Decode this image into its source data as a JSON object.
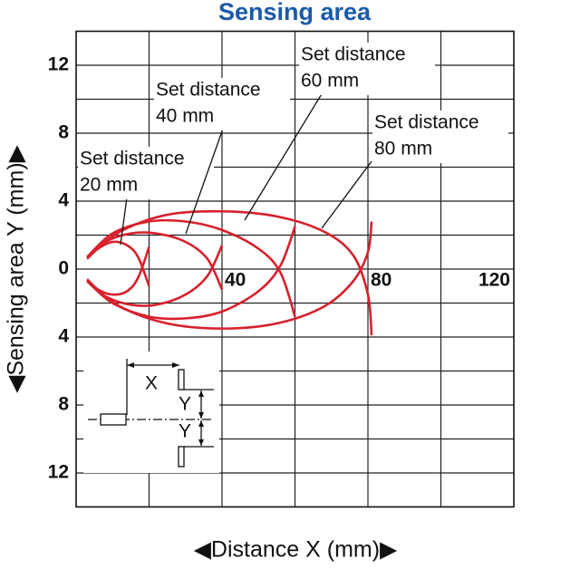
{
  "chart_data": {
    "type": "line",
    "title": "Sensing area",
    "xlabel": "◀Distance X (mm)▶",
    "ylabel": "◀Sensing area Y (mm)▶",
    "xlim": [
      0,
      120
    ],
    "ylim": [
      -14,
      14
    ],
    "xticks": [
      40,
      80,
      120
    ],
    "yticks": [
      {
        "value": -12,
        "label": "12"
      },
      {
        "value": -8,
        "label": "8"
      },
      {
        "value": -4,
        "label": "4"
      },
      0,
      4,
      8,
      12
    ],
    "xgrid": [
      0,
      20,
      40,
      60,
      80,
      100,
      120
    ],
    "ygrid": [
      -14,
      -12,
      -10,
      -8,
      -6,
      -4,
      -2,
      0,
      2,
      4,
      6,
      8,
      10,
      12,
      14
    ],
    "color": "#d8202c",
    "series": [
      {
        "x": [
          3,
          6,
          10,
          14,
          17,
          20
        ],
        "values": [
          0.6,
          1.2,
          1.6,
          1.4,
          0.7,
          -1.0
        ]
      },
      {
        "x": [
          3,
          6,
          10,
          14,
          17,
          20
        ],
        "values": [
          -0.6,
          -1.2,
          -1.5,
          -1.3,
          -0.5,
          1.3
        ]
      },
      {
        "x": [
          3,
          8,
          15,
          22,
          30,
          36,
          40
        ],
        "values": [
          0.7,
          1.6,
          2.1,
          2.1,
          1.6,
          0.6,
          -1.2
        ]
      },
      {
        "x": [
          3,
          8,
          15,
          22,
          30,
          36,
          40
        ],
        "values": [
          -0.7,
          -1.6,
          -2.1,
          -2.1,
          -1.5,
          -0.4,
          1.4
        ]
      },
      {
        "x": [
          3,
          10,
          20,
          30,
          40,
          50,
          56,
          60
        ],
        "values": [
          0.7,
          2.1,
          2.8,
          2.8,
          2.3,
          1.2,
          -0.2,
          -2.8
        ]
      },
      {
        "x": [
          3,
          10,
          20,
          30,
          40,
          50,
          56,
          60
        ],
        "values": [
          -0.7,
          -2.0,
          -2.8,
          -2.9,
          -2.5,
          -1.3,
          0.2,
          2.5
        ]
      },
      {
        "x": [
          3,
          12,
          25,
          40,
          55,
          68,
          76,
          80,
          81
        ],
        "values": [
          0.7,
          2.2,
          3.2,
          3.4,
          3.1,
          2.2,
          0.8,
          -1.5,
          -3.9
        ]
      },
      {
        "x": [
          3,
          12,
          25,
          40,
          55,
          68,
          76,
          80,
          81
        ],
        "values": [
          -0.7,
          -2.2,
          -3.2,
          -3.5,
          -3.2,
          -2.2,
          -0.7,
          1.0,
          2.8
        ]
      }
    ],
    "annotations": [
      [
        "Set distance",
        "20 mm"
      ],
      [
        "Set distance",
        "40 mm"
      ],
      [
        "Set distance",
        "60 mm"
      ],
      [
        "Set distance",
        "80 mm"
      ]
    ],
    "inset": {
      "x_label": "X",
      "y_labels": [
        "Y",
        "Y"
      ]
    }
  }
}
